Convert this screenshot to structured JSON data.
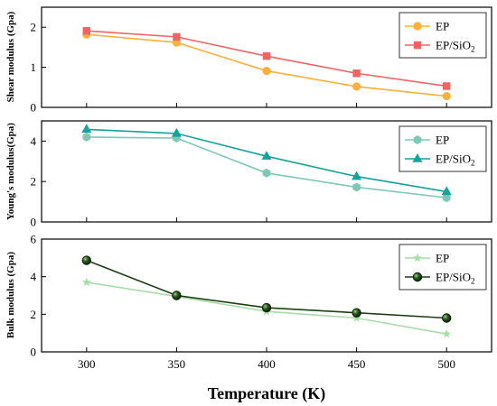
{
  "chart_data": [
    {
      "type": "line",
      "ylabel": "Shear modulus (Gpa)",
      "x": [
        300,
        350,
        400,
        450,
        500
      ],
      "ylim": [
        0,
        2.5
      ],
      "yticks": [
        0,
        1,
        2
      ],
      "legend": "top-right",
      "series": [
        {
          "name": "EP",
          "values": [
            1.82,
            1.62,
            0.91,
            0.52,
            0.28
          ],
          "color": "#FFB03B",
          "marker": "circle"
        },
        {
          "name": "EP/SiO2",
          "values": [
            1.91,
            1.76,
            1.28,
            0.85,
            0.53
          ],
          "color": "#F06464",
          "marker": "square"
        }
      ]
    },
    {
      "type": "line",
      "ylabel": "Young's modulus(Gpa)",
      "x": [
        300,
        350,
        400,
        450,
        500
      ],
      "ylim": [
        0,
        5
      ],
      "yticks": [
        0,
        2,
        4
      ],
      "legend": "top-right",
      "series": [
        {
          "name": "EP",
          "values": [
            4.2,
            4.15,
            2.42,
            1.72,
            1.2
          ],
          "color": "#7EC8B8",
          "marker": "hexagon"
        },
        {
          "name": "EP/SiO2",
          "values": [
            4.58,
            4.38,
            3.25,
            2.25,
            1.5
          ],
          "color": "#12A39A",
          "marker": "triangle"
        }
      ]
    },
    {
      "type": "line",
      "ylabel": "Bulk modulus (Gpa)",
      "x": [
        300,
        350,
        400,
        450,
        500
      ],
      "ylim": [
        0,
        6
      ],
      "yticks": [
        0,
        2,
        4,
        6
      ],
      "legend": "top-right",
      "series": [
        {
          "name": "EP",
          "values": [
            3.7,
            2.95,
            2.15,
            1.8,
            0.95
          ],
          "color": "#A8DDA8",
          "marker": "star"
        },
        {
          "name": "EP/SiO2",
          "values": [
            4.87,
            3.0,
            2.35,
            2.08,
            1.8
          ],
          "color": "#1E3F14",
          "marker": "sphere"
        }
      ]
    }
  ],
  "xlabel": "Temperature  (K)",
  "xticks": [
    300,
    350,
    400,
    450,
    500
  ],
  "xlim": [
    275,
    525
  ]
}
